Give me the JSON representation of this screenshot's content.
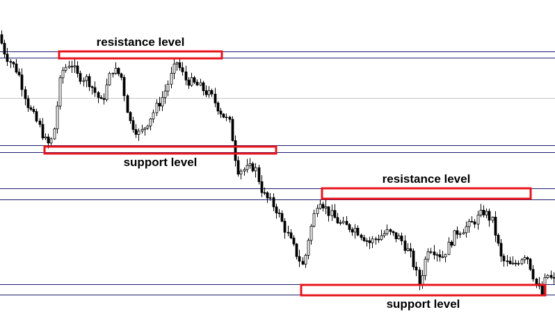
{
  "chart_data": {
    "type": "candlestick",
    "title": "",
    "xlabel": "",
    "ylabel": "",
    "ylim": [
      0,
      449
    ],
    "grid": false,
    "horizontal_lines": [
      {
        "value": 375,
        "color": "#1a1a6e"
      },
      {
        "value": 366,
        "color": "#1a1a6e"
      },
      {
        "value": 308,
        "color": "#c8c8c8"
      },
      {
        "value": 240,
        "color": "#1a1a6e"
      },
      {
        "value": 230,
        "color": "#1a1a6e"
      },
      {
        "value": 178,
        "color": "#1a1a6e"
      },
      {
        "value": 162,
        "color": "#1a1a6e"
      },
      {
        "value": 40,
        "color": "#1a1a6e"
      },
      {
        "value": 25,
        "color": "#1a1a6e"
      }
    ],
    "zones": [
      {
        "kind": "resistance",
        "label": "resistance level",
        "x_from": 85,
        "x_to": 319,
        "y_from": 365,
        "y_to": 375,
        "color": "#e8141c"
      },
      {
        "kind": "support",
        "label": "support level",
        "x_from": 64,
        "x_to": 397,
        "y_from": 228,
        "y_to": 238,
        "color": "#e8141c"
      },
      {
        "kind": "resistance",
        "label": "resistance level",
        "x_from": 463,
        "x_to": 763,
        "y_from": 163,
        "y_to": 178,
        "color": "#e8141c"
      },
      {
        "kind": "support",
        "label": "support level",
        "x_from": 433,
        "x_to": 784,
        "y_from": 24,
        "y_to": 39,
        "color": "#e8141c"
      }
    ],
    "candle_color": "#000000",
    "candle_fill_up": "#ffffff",
    "candle_fill_down": "#000000",
    "price_path": [
      [
        0,
        405
      ],
      [
        12,
        370
      ],
      [
        30,
        345
      ],
      [
        45,
        295
      ],
      [
        60,
        268
      ],
      [
        72,
        240
      ],
      [
        80,
        250
      ],
      [
        92,
        345
      ],
      [
        105,
        360
      ],
      [
        115,
        340
      ],
      [
        130,
        335
      ],
      [
        150,
        300
      ],
      [
        165,
        350
      ],
      [
        178,
        340
      ],
      [
        190,
        275
      ],
      [
        205,
        255
      ],
      [
        220,
        280
      ],
      [
        238,
        310
      ],
      [
        258,
        360
      ],
      [
        270,
        335
      ],
      [
        290,
        325
      ],
      [
        308,
        310
      ],
      [
        320,
        290
      ],
      [
        335,
        270
      ],
      [
        345,
        205
      ],
      [
        358,
        205
      ],
      [
        370,
        210
      ],
      [
        382,
        170
      ],
      [
        400,
        150
      ],
      [
        418,
        110
      ],
      [
        432,
        80
      ],
      [
        440,
        65
      ],
      [
        447,
        105
      ],
      [
        462,
        165
      ],
      [
        475,
        145
      ],
      [
        495,
        125
      ],
      [
        515,
        120
      ],
      [
        535,
        100
      ],
      [
        560,
        115
      ],
      [
        580,
        105
      ],
      [
        595,
        80
      ],
      [
        607,
        40
      ],
      [
        620,
        95
      ],
      [
        640,
        80
      ],
      [
        660,
        115
      ],
      [
        680,
        125
      ],
      [
        700,
        145
      ],
      [
        712,
        130
      ],
      [
        725,
        75
      ],
      [
        740,
        65
      ],
      [
        760,
        85
      ],
      [
        775,
        40
      ],
      [
        783,
        25
      ],
      [
        790,
        55
      ],
      [
        798,
        45
      ]
    ]
  }
}
